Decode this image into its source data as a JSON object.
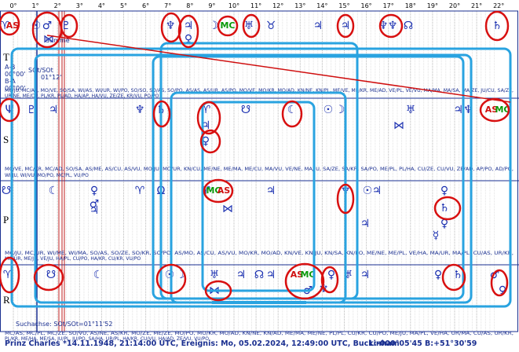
{
  "scale": [
    "0°",
    "1°",
    "2°",
    "3°",
    "4°",
    "5°",
    "6°",
    "7°",
    "8°",
    "9°",
    "10°",
    "11°",
    "12°",
    "13°",
    "14°",
    "15°",
    "16°",
    "17°",
    "18°",
    "19°",
    "20°",
    "21°",
    "22°"
  ],
  "rows": [
    {
      "label": "T",
      "symbols": [
        "♈",
        "AS",
        "☉",
        "♂",
        "⋈",
        "♇",
        "♆",
        "♃",
        "♀",
        "☽",
        "MC",
        "♅",
        "♉",
        "♃",
        "♃",
        "♆",
        "♆",
        "☊",
        "♄"
      ],
      "midpoints": [
        "MC/JU, MC/AP, MO/VE, SO/SA, WI/AS, WI/UR, WI/PO, SO/SO, SO/AS, SO/PO, AS/AS, AS/UR, AS/PO, MO/VE, MO/KR, MO/AD, KN/NE, KN/PL, ME/VE, ME/KR, ME/AD, VE/PL, VE/VU, MA/MA, MA/SA, MA/ZE, JU/CU, SA/ZE,",
        "UR/NE, ME/CU, PL/KR, PL/AD, HA/AP, HA/VU, ZE/ZE, KR/VU, PO/PO"
      ]
    },
    {
      "label": "S",
      "symbols": [
        "Ψ",
        "♇",
        "♃",
        "♆",
        "♄",
        "♈",
        "♃",
        "♀",
        "☋",
        "☾",
        "☉",
        "☽",
        "♅",
        "⋈",
        "♃♆",
        "AS",
        "MC"
      ],
      "midpoints": [
        "MC/VE, MC/KR, MC/AD, SO/SA, AS/ME, AS/CU, AS/VU, MO/JU, MO/UR, KN/CU, ME/NE, ME/MA, ME/CU, MA/VU, VE/NE, MA/JU, SA/ZE, SA/KR, SA/PO, ME/PL, PL/HA, CU/ZE, CU/VU, ZE/AD, AP/PO, AD/PO,",
        "WI/JU, WI/VU, MO/PO, MC/PL, VU/PO"
      ]
    },
    {
      "label": "P",
      "symbols": [
        "☋",
        "♃",
        "♀",
        "♂",
        "☾",
        "♈",
        "Ω",
        "♈",
        "MC",
        "AS",
        "⋈",
        "♃",
        "♆",
        "☉",
        "♃",
        "♃",
        "♀",
        "♄",
        "♀",
        "☿"
      ],
      "midpoints": [
        "MC/JU, MC/UR, WI/ME, WI/MA, SO/AS, SO/ZE, SO/KR, SO/PO, AS/MO, AS/CU, AS/VU, MO/KR, MO/AD, KN/VE, KN/JU, KN/SA, KN/PO, ME/NE, ME/PL, VE/HA, MA/UR, MA/PL, CU/AS, UR/KR,",
        "MO/UR, ME/JU, VE/JU, HA/PL, CU/PO, HA/KR, CU/KR, VU/PO"
      ]
    },
    {
      "label": "R",
      "symbols": [
        "♈",
        "☋",
        "☾",
        "☉",
        "☽",
        "♅",
        "⋈",
        "♃",
        "☊",
        "♃",
        "AS",
        "MC",
        "♀",
        "♂",
        "♆",
        "♅",
        "♃",
        "♀",
        "♄",
        "♂",
        "♀"
      ],
      "midpoints": [
        "MC/AS, MC/PL, MC/ZE, SO/VU, AS/NE, AS/KR, MO/ZE, ME/ZE, MO/PO, MO/KR, MO/AD, KN/NE, KN/AD, ME/MA, ME/NE, PL/PL, CU/KR, CU/PO, ME/JU, MA/PL, VE/HA, UR/MA, CU/AS, UR/KR,",
        "PL/KR, ME/HA, ME/SA, JU/PL, JU/PO, SA/HA, UR/PL, HA/KR, CU/VU, HA/AD, ZE/VU, VU/PO"
      ]
    }
  ],
  "notes": {
    "summe": "Summe",
    "ab": "A-B",
    "ab_value": "00°00'",
    "ba": "B-A",
    "ba_value": "00°00'",
    "sot": "SOt/SOt",
    "sot_value": "01°12'",
    "search_axis": "Suchachse: SOt/SOt=01°11'52"
  },
  "footer": {
    "left": "Prinz Charles *14.11.1948, 21:14:00 UTC, Ereignis: Mo, 05.02.2024, 12:49:00 UTC, Buckinham",
    "right": "L:-000°05'45 B:+51°30'59"
  }
}
